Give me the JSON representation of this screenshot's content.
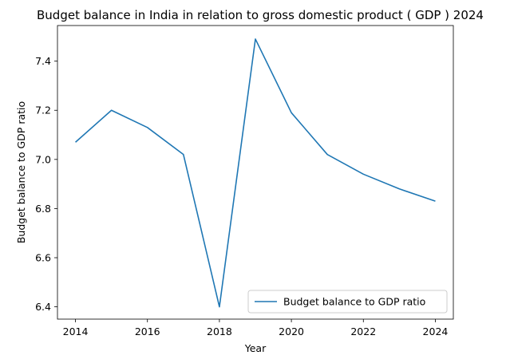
{
  "chart_data": {
    "type": "line",
    "title": "Budget balance in India in relation to gross domestic product ( GDP ) 2024",
    "xlabel": "Year",
    "ylabel": "Budget balance to GDP ratio",
    "x": [
      2014,
      2015,
      2016,
      2017,
      2018,
      2019,
      2020,
      2021,
      2022,
      2023,
      2024
    ],
    "series": [
      {
        "name": "Budget balance to GDP ratio",
        "color": "#1f77b4",
        "values": [
          7.07,
          7.2,
          7.13,
          7.02,
          6.4,
          7.49,
          7.19,
          7.02,
          6.94,
          6.88,
          6.83
        ]
      }
    ],
    "xlim": [
      2013.5,
      2024.5
    ],
    "ylim": [
      6.35,
      7.545
    ],
    "xticks": [
      2014,
      2016,
      2018,
      2020,
      2022,
      2024
    ],
    "yticks": [
      6.4,
      6.6,
      6.8,
      7.0,
      7.2,
      7.4
    ],
    "ytick_labels": [
      "6.4",
      "6.6",
      "6.8",
      "7.0",
      "7.2",
      "7.4"
    ],
    "grid": false,
    "legend_position": "lower-right"
  }
}
